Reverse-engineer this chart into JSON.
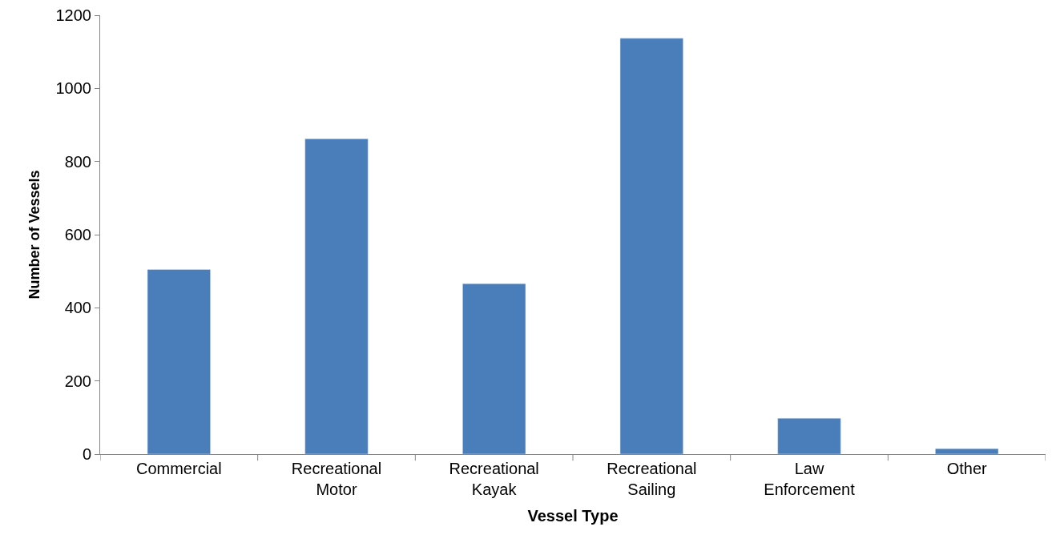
{
  "chart_data": {
    "type": "bar",
    "xlabel": "Vessel Type",
    "ylabel": "Number of Vessels",
    "categories": [
      "Commercial",
      "Recreational Motor",
      "Recreational Kayak",
      "Recreational Sailing",
      "Law Enforcement",
      "Other"
    ],
    "values": [
      505,
      862,
      466,
      1137,
      98,
      15
    ],
    "color": "#4a7ebb",
    "ylim": [
      0,
      1200
    ],
    "yticks": [
      0,
      200,
      400,
      600,
      800,
      1000,
      1200
    ]
  }
}
